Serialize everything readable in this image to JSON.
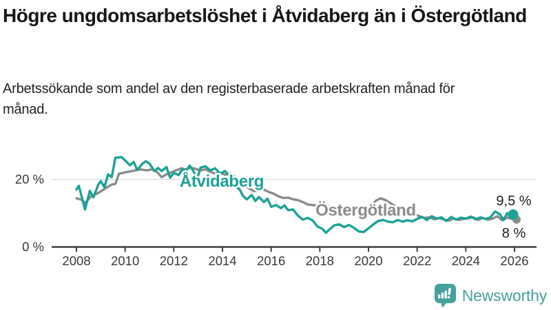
{
  "header": {
    "title": "Högre ungdomsarbetslöshet i Åtvidaberg än i Östergötland",
    "subtitle": "Arbetssökande som andel av den registerbaserade arbetskraften månad för månad."
  },
  "chart_data": {
    "type": "line",
    "title": "Högre ungdomsarbetslöshet i Åtvidaberg än i Östergötland",
    "xlabel": "",
    "ylabel": "",
    "unit": "%",
    "frequency": "monthly",
    "x_range": [
      2008,
      2026
    ],
    "ylim": [
      0,
      28
    ],
    "grid": "single horizontal gridline at 20 %",
    "legend_position": "labels inline on lines",
    "x_ticks": [
      "2008",
      "2010",
      "2012",
      "2014",
      "2016",
      "2018",
      "2020",
      "2022",
      "2024",
      "2026"
    ],
    "x_tick_years": [
      2008,
      2010,
      2012,
      2014,
      2016,
      2018,
      2020,
      2022,
      2024,
      2026
    ],
    "y_ticks": [
      {
        "value": 20,
        "label": "20 %",
        "gridline": true
      },
      {
        "value": 0,
        "label": "0 %",
        "axis": true
      }
    ],
    "series": [
      {
        "name": "Östergötland",
        "color": "#8b8b8b",
        "end_value": 8,
        "end_label": "8 %",
        "points": [
          [
            2008.0,
            14.3
          ],
          [
            2008.2,
            13.9
          ],
          [
            2008.35,
            12.9
          ],
          [
            2008.6,
            14.9
          ],
          [
            2008.9,
            15.9
          ],
          [
            2009.2,
            17.3
          ],
          [
            2009.45,
            18.4
          ],
          [
            2009.6,
            18.6
          ],
          [
            2009.75,
            21.6
          ],
          [
            2010.0,
            22.0
          ],
          [
            2010.3,
            22.4
          ],
          [
            2010.6,
            22.9
          ],
          [
            2010.9,
            22.6
          ],
          [
            2011.1,
            22.9
          ],
          [
            2011.3,
            22.2
          ],
          [
            2011.5,
            20.6
          ],
          [
            2011.7,
            21.4
          ],
          [
            2011.9,
            22.0
          ],
          [
            2012.1,
            22.6
          ],
          [
            2012.3,
            23.2
          ],
          [
            2012.5,
            22.9
          ],
          [
            2012.7,
            23.4
          ],
          [
            2012.9,
            23.0
          ],
          [
            2013.1,
            22.6
          ],
          [
            2013.3,
            22.9
          ],
          [
            2013.5,
            22.2
          ],
          [
            2013.7,
            21.6
          ],
          [
            2013.9,
            21.9
          ],
          [
            2014.1,
            21.3
          ],
          [
            2014.3,
            21.6
          ],
          [
            2014.5,
            20.8
          ],
          [
            2014.7,
            19.5
          ],
          [
            2014.9,
            18.0
          ],
          [
            2015.1,
            17.2
          ],
          [
            2015.3,
            16.4
          ],
          [
            2015.5,
            16.7
          ],
          [
            2015.7,
            16.9
          ],
          [
            2015.9,
            16.2
          ],
          [
            2016.1,
            15.7
          ],
          [
            2016.3,
            14.9
          ],
          [
            2016.5,
            14.4
          ],
          [
            2016.7,
            14.5
          ],
          [
            2016.9,
            14.0
          ],
          [
            2017.1,
            13.8
          ],
          [
            2017.3,
            13.2
          ],
          [
            2017.5,
            12.5
          ],
          [
            2017.7,
            12.3
          ],
          [
            2017.9,
            12.1
          ],
          [
            2018.1,
            12.2
          ],
          [
            2018.3,
            11.9
          ],
          [
            2018.5,
            11.7
          ],
          [
            2018.7,
            11.9
          ],
          [
            2018.9,
            11.5
          ],
          [
            2019.1,
            11.2
          ],
          [
            2019.3,
            11.4
          ],
          [
            2019.5,
            11.0
          ],
          [
            2019.7,
            10.7
          ],
          [
            2019.9,
            10.9
          ],
          [
            2020.1,
            11.8
          ],
          [
            2020.3,
            13.6
          ],
          [
            2020.5,
            14.3
          ],
          [
            2020.7,
            13.8
          ],
          [
            2020.9,
            12.9
          ],
          [
            2021.1,
            12.0
          ],
          [
            2021.3,
            11.2
          ],
          [
            2021.5,
            10.4
          ],
          [
            2021.7,
            9.9
          ],
          [
            2021.9,
            9.5
          ],
          [
            2022.1,
            9.0
          ],
          [
            2022.3,
            8.5
          ],
          [
            2022.5,
            8.7
          ],
          [
            2022.7,
            8.1
          ],
          [
            2022.9,
            8.4
          ],
          [
            2023.1,
            8.0
          ],
          [
            2023.3,
            7.7
          ],
          [
            2023.5,
            8.3
          ],
          [
            2023.7,
            7.9
          ],
          [
            2023.9,
            8.2
          ],
          [
            2024.1,
            8.4
          ],
          [
            2024.3,
            8.7
          ],
          [
            2024.5,
            7.9
          ],
          [
            2024.7,
            8.5
          ],
          [
            2024.9,
            8.0
          ],
          [
            2025.1,
            8.3
          ],
          [
            2025.3,
            9.0
          ],
          [
            2025.5,
            7.8
          ],
          [
            2025.7,
            8.6
          ],
          [
            2025.9,
            8.2
          ],
          [
            2026.0,
            8.0
          ]
        ]
      },
      {
        "name": "Åtvidaberg",
        "color": "#1aa296",
        "end_value": 9.5,
        "end_label": "9,5 %",
        "points": [
          [
            2008.0,
            16.9
          ],
          [
            2008.1,
            18.0
          ],
          [
            2008.35,
            11.0
          ],
          [
            2008.55,
            16.5
          ],
          [
            2008.7,
            14.6
          ],
          [
            2008.9,
            18.4
          ],
          [
            2009.0,
            19.4
          ],
          [
            2009.15,
            17.6
          ],
          [
            2009.3,
            21.4
          ],
          [
            2009.45,
            20.6
          ],
          [
            2009.6,
            26.3
          ],
          [
            2009.85,
            26.5
          ],
          [
            2010.0,
            25.5
          ],
          [
            2010.2,
            24.1
          ],
          [
            2010.35,
            25.1
          ],
          [
            2010.5,
            22.7
          ],
          [
            2010.7,
            24.5
          ],
          [
            2010.85,
            25.3
          ],
          [
            2011.0,
            24.6
          ],
          [
            2011.2,
            22.4
          ],
          [
            2011.35,
            23.3
          ],
          [
            2011.5,
            22.4
          ],
          [
            2011.7,
            23.6
          ],
          [
            2011.85,
            20.4
          ],
          [
            2012.0,
            21.8
          ],
          [
            2012.2,
            21.2
          ],
          [
            2012.35,
            22.9
          ],
          [
            2012.5,
            22.3
          ],
          [
            2012.65,
            24.0
          ],
          [
            2012.8,
            22.5
          ],
          [
            2012.95,
            19.8
          ],
          [
            2013.1,
            23.4
          ],
          [
            2013.3,
            23.8
          ],
          [
            2013.5,
            22.6
          ],
          [
            2013.7,
            23.2
          ],
          [
            2013.9,
            21.6
          ],
          [
            2014.1,
            22.4
          ],
          [
            2014.3,
            21.0
          ],
          [
            2014.5,
            18.0
          ],
          [
            2014.7,
            17.0
          ],
          [
            2014.85,
            15.0
          ],
          [
            2015.0,
            14.0
          ],
          [
            2015.2,
            15.3
          ],
          [
            2015.35,
            13.5
          ],
          [
            2015.5,
            14.7
          ],
          [
            2015.7,
            13.2
          ],
          [
            2015.85,
            14.2
          ],
          [
            2016.0,
            11.8
          ],
          [
            2016.2,
            12.3
          ],
          [
            2016.4,
            11.4
          ],
          [
            2016.55,
            12.2
          ],
          [
            2016.7,
            10.8
          ],
          [
            2016.9,
            11.0
          ],
          [
            2017.1,
            9.2
          ],
          [
            2017.3,
            8.0
          ],
          [
            2017.5,
            8.5
          ],
          [
            2017.7,
            7.8
          ],
          [
            2017.9,
            6.0
          ],
          [
            2018.1,
            5.3
          ],
          [
            2018.25,
            4.1
          ],
          [
            2018.4,
            5.1
          ],
          [
            2018.6,
            6.3
          ],
          [
            2018.8,
            6.6
          ],
          [
            2019.0,
            5.8
          ],
          [
            2019.2,
            6.4
          ],
          [
            2019.4,
            5.6
          ],
          [
            2019.6,
            4.5
          ],
          [
            2019.8,
            4.3
          ],
          [
            2020.0,
            5.4
          ],
          [
            2020.2,
            6.6
          ],
          [
            2020.4,
            7.6
          ],
          [
            2020.6,
            7.9
          ],
          [
            2020.8,
            7.4
          ],
          [
            2021.0,
            7.2
          ],
          [
            2021.2,
            7.9
          ],
          [
            2021.4,
            7.4
          ],
          [
            2021.6,
            7.8
          ],
          [
            2021.8,
            7.5
          ],
          [
            2022.0,
            8.2
          ],
          [
            2022.2,
            8.8
          ],
          [
            2022.4,
            7.9
          ],
          [
            2022.6,
            9.0
          ],
          [
            2022.8,
            8.3
          ],
          [
            2023.0,
            8.7
          ],
          [
            2023.2,
            7.6
          ],
          [
            2023.4,
            8.8
          ],
          [
            2023.6,
            8.0
          ],
          [
            2023.8,
            8.6
          ],
          [
            2024.0,
            8.3
          ],
          [
            2024.2,
            8.9
          ],
          [
            2024.4,
            8.1
          ],
          [
            2024.6,
            8.7
          ],
          [
            2024.8,
            8.2
          ],
          [
            2025.0,
            8.6
          ],
          [
            2025.2,
            10.4
          ],
          [
            2025.4,
            9.6
          ],
          [
            2025.55,
            7.9
          ],
          [
            2025.7,
            9.9
          ],
          [
            2025.85,
            8.8
          ],
          [
            2026.0,
            9.5
          ]
        ]
      }
    ]
  },
  "branding": {
    "logo_text": "Newsworthy",
    "logo_color": "#46a09d"
  }
}
